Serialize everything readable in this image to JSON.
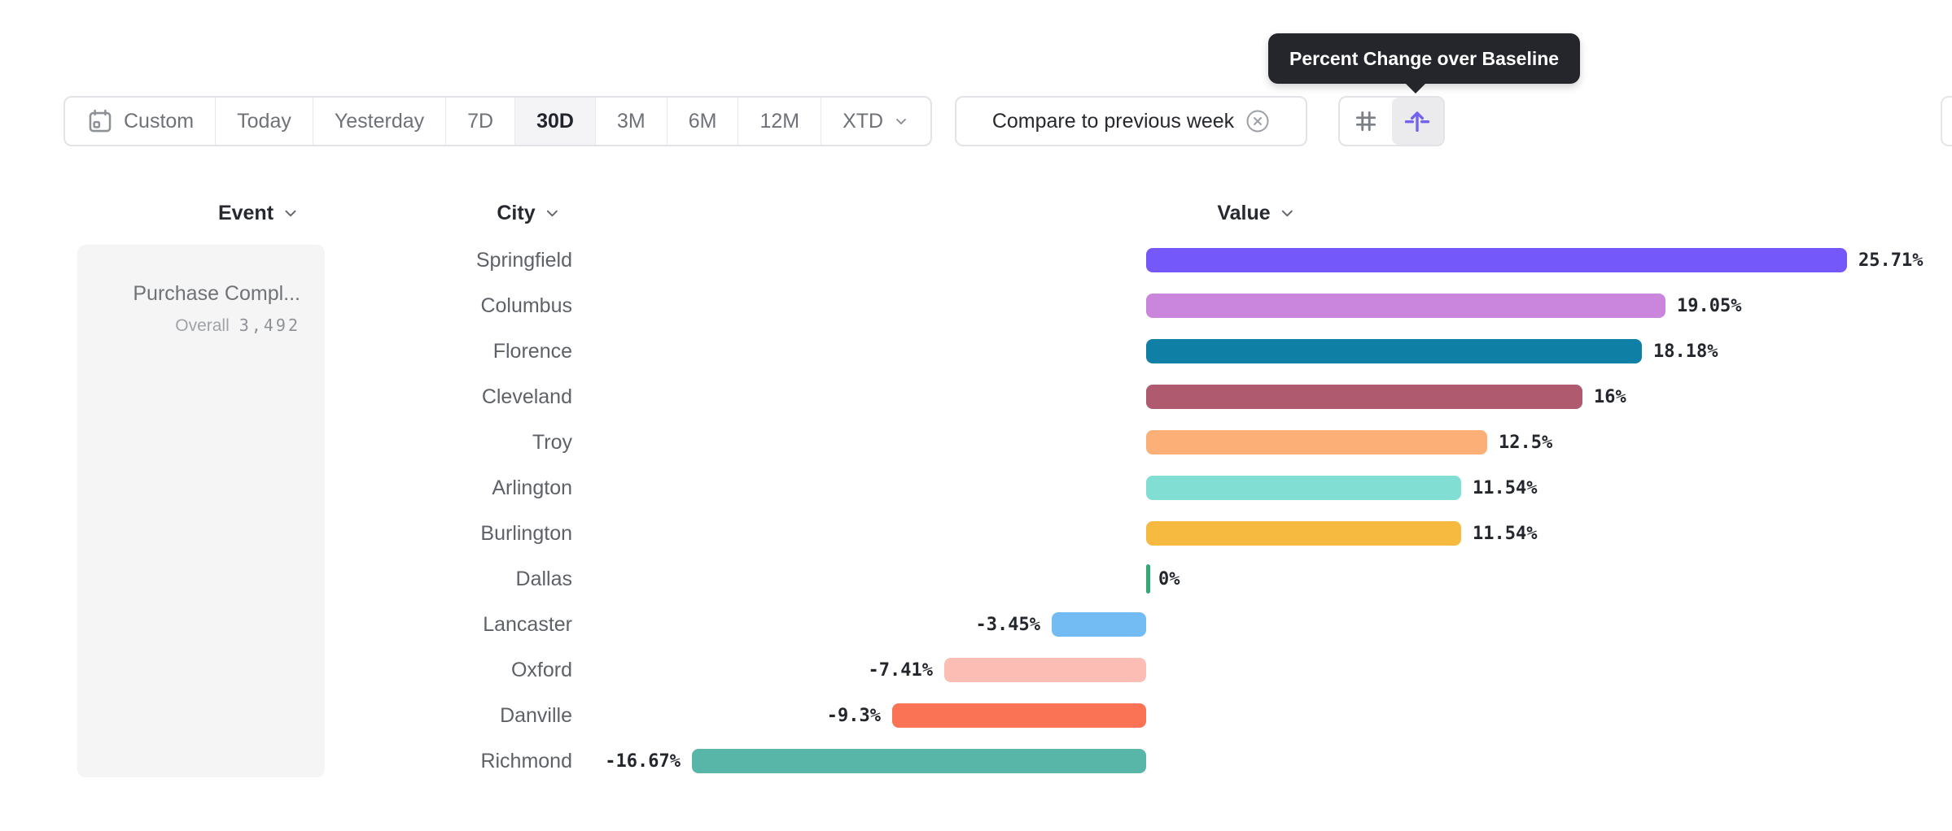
{
  "tooltip": {
    "text": "Percent Change over Baseline"
  },
  "toolbar": {
    "date_ranges": [
      {
        "label": "Custom",
        "icon": "calendar-icon",
        "selected": false
      },
      {
        "label": "Today",
        "selected": false
      },
      {
        "label": "Yesterday",
        "selected": false
      },
      {
        "label": "7D",
        "selected": false
      },
      {
        "label": "30D",
        "selected": true
      },
      {
        "label": "3M",
        "selected": false
      },
      {
        "label": "6M",
        "selected": false
      },
      {
        "label": "12M",
        "selected": false
      },
      {
        "label": "XTD",
        "selected": false,
        "has_chevron": true
      }
    ],
    "compare": {
      "label": "Compare to previous week",
      "close_icon": "circle-x-icon"
    },
    "view_toggle": [
      {
        "icon": "hash-icon",
        "active": false
      },
      {
        "icon": "percent-change-baseline-icon",
        "active": true,
        "accent_color": "#7263ef"
      }
    ]
  },
  "columns": {
    "event": "Event",
    "city": "City",
    "value": "Value"
  },
  "event_card": {
    "name": "Purchase Compl...",
    "overall_label": "Overall",
    "overall_value": "3,492"
  },
  "chart_data": {
    "type": "bar",
    "orientation": "horizontal",
    "title": "Percent Change over Baseline",
    "group_by": "City",
    "metric": "Value",
    "categories": [
      "Springfield",
      "Columbus",
      "Florence",
      "Cleveland",
      "Troy",
      "Arlington",
      "Burlington",
      "Dallas",
      "Lancaster",
      "Oxford",
      "Danville",
      "Richmond"
    ],
    "values": [
      25.71,
      19.05,
      18.18,
      16,
      12.5,
      11.54,
      11.54,
      0,
      -3.45,
      -7.41,
      -9.3,
      -16.67
    ],
    "labels": [
      "25.71%",
      "19.05%",
      "18.18%",
      "16%",
      "12.5%",
      "11.54%",
      "11.54%",
      "0%",
      "-3.45%",
      "-7.41%",
      "-9.3%",
      "-16.67%"
    ],
    "colors": [
      "#7558fa",
      "#ca86dc",
      "#107fa6",
      "#af5a6e",
      "#fcb078",
      "#81ded3",
      "#f5ba3f",
      "#36a876",
      "#72bcf3",
      "#fcbdb5",
      "#fb7355",
      "#58b6a9"
    ],
    "x_range": [
      -16.67,
      25.71
    ],
    "baseline": 0,
    "grid": false,
    "legend": "none"
  }
}
